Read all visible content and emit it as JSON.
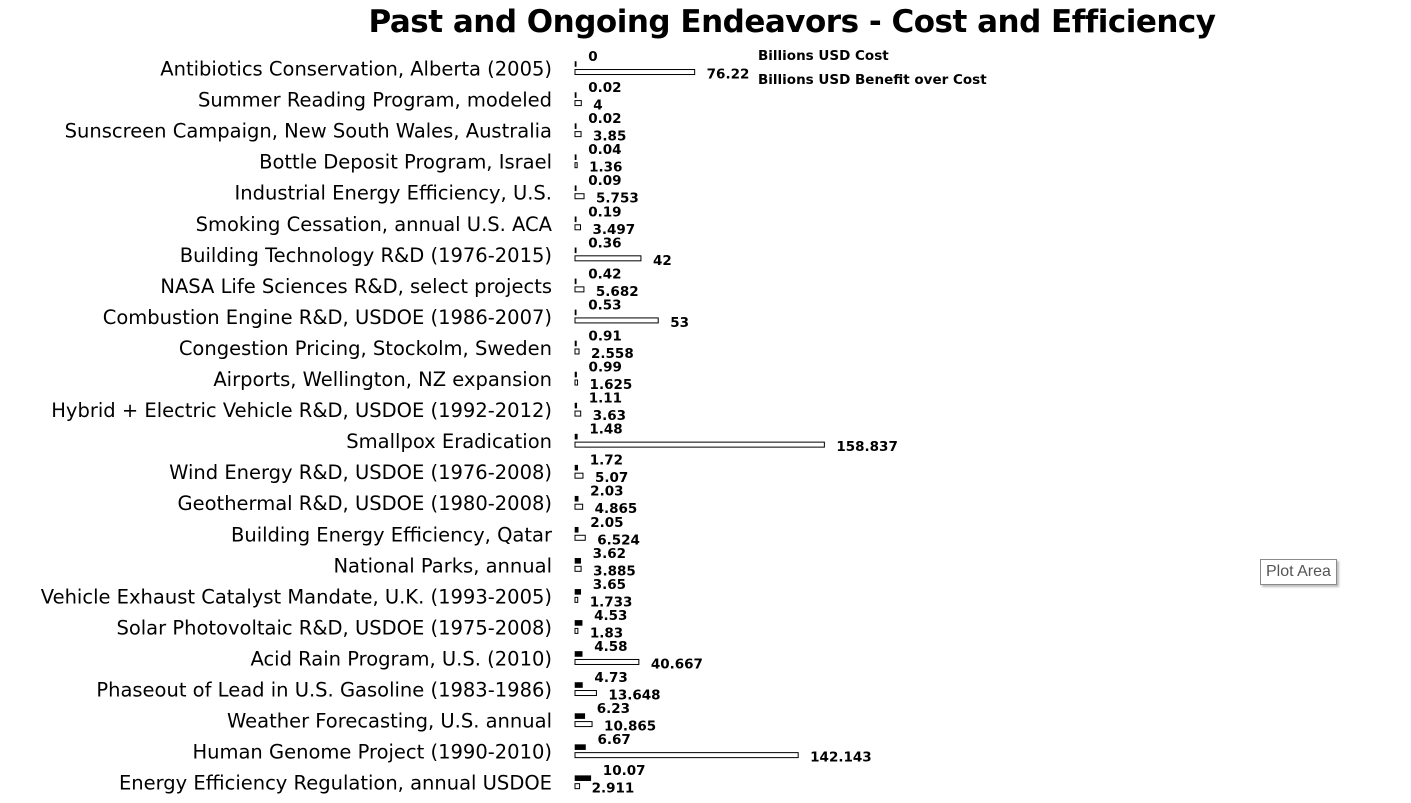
{
  "chart_data": {
    "type": "bar",
    "orientation": "horizontal",
    "title": "Past and Ongoing Endeavors - Cost and Efficiency",
    "categories": [
      "Antibiotics Conservation, Alberta (2005)",
      "Summer Reading Program, modeled",
      "Sunscreen Campaign, New South Wales, Australia",
      "Bottle Deposit Program, Israel",
      "Industrial Energy Efficiency, U.S.",
      "Smoking Cessation, annual U.S. ACA",
      "Building Technology R&D (1976-2015)",
      "NASA Life Sciences R&D, select projects",
      "Combustion Engine R&D, USDOE (1986-2007)",
      "Congestion Pricing, Stockolm, Sweden",
      "Airports, Wellington, NZ expansion",
      "Hybrid + Electric Vehicle R&D, USDOE (1992-2012)",
      "Smallpox Eradication",
      "Wind Energy R&D, USDOE (1976-2008)",
      "Geothermal R&D, USDOE (1980-2008)",
      "Building Energy Efficiency, Qatar",
      "National Parks, annual",
      "Vehicle Exhaust Catalyst Mandate, U.K. (1993-2005)",
      "Solar Photovoltaic R&D, USDOE (1975-2008)",
      "Acid Rain Program, U.S. (2010)",
      "Phaseout of Lead in U.S. Gasoline (1983-1986)",
      "Weather Forecasting, U.S. annual",
      "Human Genome Project (1990-2010)",
      "Energy Efficiency Regulation, annual USDOE"
    ],
    "series": [
      {
        "name": "Billions USD Cost",
        "color": "#000000",
        "values": [
          0,
          0.02,
          0.02,
          0.04,
          0.09,
          0.19,
          0.36,
          0.42,
          0.53,
          0.91,
          0.99,
          1.11,
          1.48,
          1.72,
          2.03,
          2.05,
          3.62,
          3.65,
          4.53,
          4.58,
          4.73,
          6.23,
          6.67,
          10.07
        ],
        "labels": [
          "0",
          "0.02",
          "0.02",
          "0.04",
          "0.09",
          "0.19",
          "0.36",
          "0.42",
          "0.53",
          "0.91",
          "0.99",
          "1.11",
          "1.48",
          "1.72",
          "2.03",
          "2.05",
          "3.62",
          "3.65",
          "4.53",
          "4.58",
          "4.73",
          "6.23",
          "6.67",
          "10.07"
        ]
      },
      {
        "name": "Billions USD Benefit over Cost",
        "color": "#ffffff",
        "values": [
          76.22,
          4,
          3.85,
          1.36,
          5.753,
          3.497,
          42,
          5.682,
          53,
          2.558,
          1.625,
          3.63,
          158.837,
          5.07,
          4.865,
          6.524,
          3.885,
          1.733,
          1.83,
          40.667,
          13.648,
          10.865,
          142.143,
          2.911
        ],
        "labels": [
          "76.22",
          "4",
          "3.85",
          "1.36",
          "5.753",
          "3.497",
          "42",
          "5.682",
          "53",
          "2.558",
          "1.625",
          "3.63",
          "158.837",
          "5.07",
          "4.865",
          "6.524",
          "3.885",
          "1.733",
          "1.83",
          "40.667",
          "13.648",
          "10.865",
          "142.143",
          "2.911"
        ]
      }
    ],
    "legend_position": "top-right",
    "grid": false
  },
  "tooltip": "Plot Area"
}
